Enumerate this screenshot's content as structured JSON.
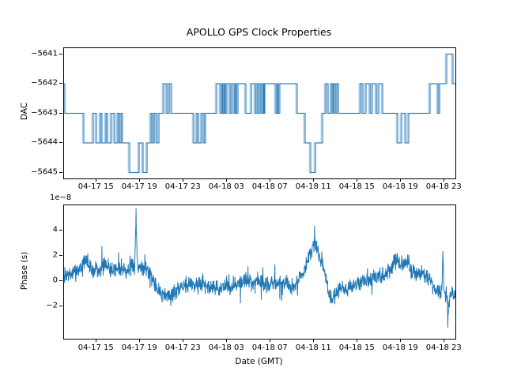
{
  "figure": {
    "title": "APOLLO GPS Clock Properties",
    "xlabel": "Date (GMT)",
    "background": "#ffffff",
    "accent_color": "#1f77b4"
  },
  "chart_data": [
    {
      "type": "step",
      "title": "APOLLO GPS Clock Properties",
      "ylabel": "DAC",
      "x_unit": "hours since 04-17 12:00 GMT",
      "xlim": [
        0,
        36
      ],
      "ylim": [
        -5645.2,
        -5640.8
      ],
      "yticks": [
        -5641,
        -5642,
        -5643,
        -5644,
        -5645
      ],
      "ytick_labels": [
        "−5641",
        "−5642",
        "−5643",
        "−5644",
        "−5645"
      ],
      "xtick_hours": [
        3,
        7,
        11,
        15,
        19,
        23,
        27,
        31,
        35
      ],
      "xtick_labels": [
        "04-17 15",
        "04-17 19",
        "04-17 23",
        "04-18 03",
        "04-18 07",
        "04-18 11",
        "04-18 15",
        "04-18 19",
        "04-18 23"
      ],
      "grid": false,
      "legend": "none",
      "line_color": "#2b7bba",
      "line_color_light": "#a8cbe4",
      "double_stroke_offset_hours": -0.12,
      "points": [
        [
          0,
          -5642
        ],
        [
          0.07,
          -5643
        ],
        [
          1.82,
          -5644
        ],
        [
          2.69,
          -5643
        ],
        [
          2.98,
          -5644
        ],
        [
          3.35,
          -5643
        ],
        [
          3.49,
          -5644
        ],
        [
          3.85,
          -5643
        ],
        [
          4.0,
          -5644
        ],
        [
          4.36,
          -5643
        ],
        [
          4.65,
          -5644
        ],
        [
          4.95,
          -5643
        ],
        [
          5.09,
          -5644
        ],
        [
          5.24,
          -5643
        ],
        [
          5.38,
          -5644
        ],
        [
          6.04,
          -5645
        ],
        [
          6.91,
          -5644
        ],
        [
          7.27,
          -5645
        ],
        [
          7.64,
          -5644
        ],
        [
          8.0,
          -5643
        ],
        [
          8.15,
          -5644
        ],
        [
          8.29,
          -5643
        ],
        [
          8.51,
          -5644
        ],
        [
          8.73,
          -5643
        ],
        [
          9.16,
          -5642
        ],
        [
          9.45,
          -5643
        ],
        [
          9.67,
          -5642
        ],
        [
          9.89,
          -5643
        ],
        [
          11.93,
          -5644
        ],
        [
          12.22,
          -5643
        ],
        [
          12.36,
          -5644
        ],
        [
          12.65,
          -5643
        ],
        [
          12.87,
          -5644
        ],
        [
          13.02,
          -5643
        ],
        [
          14.04,
          -5642
        ],
        [
          14.4,
          -5643
        ],
        [
          14.55,
          -5642
        ],
        [
          14.62,
          -5643
        ],
        [
          14.76,
          -5642
        ],
        [
          14.84,
          -5643
        ],
        [
          14.98,
          -5642
        ],
        [
          15.27,
          -5643
        ],
        [
          15.42,
          -5642
        ],
        [
          15.64,
          -5643
        ],
        [
          15.78,
          -5642
        ],
        [
          15.85,
          -5643
        ],
        [
          16.0,
          -5642
        ],
        [
          16.73,
          -5643
        ],
        [
          17.24,
          -5642
        ],
        [
          17.6,
          -5643
        ],
        [
          17.75,
          -5642
        ],
        [
          17.89,
          -5643
        ],
        [
          18.04,
          -5642
        ],
        [
          18.18,
          -5643
        ],
        [
          18.33,
          -5642
        ],
        [
          18.4,
          -5643
        ],
        [
          18.47,
          -5642
        ],
        [
          19.49,
          -5643
        ],
        [
          19.64,
          -5642
        ],
        [
          19.71,
          -5643
        ],
        [
          19.85,
          -5642
        ],
        [
          21.45,
          -5643
        ],
        [
          22.18,
          -5644
        ],
        [
          22.69,
          -5645
        ],
        [
          23.13,
          -5644
        ],
        [
          23.78,
          -5643
        ],
        [
          24.07,
          -5642
        ],
        [
          24.29,
          -5643
        ],
        [
          24.58,
          -5642
        ],
        [
          24.73,
          -5643
        ],
        [
          24.8,
          -5642
        ],
        [
          24.95,
          -5643
        ],
        [
          25.09,
          -5642
        ],
        [
          25.24,
          -5643
        ],
        [
          27.27,
          -5642
        ],
        [
          27.49,
          -5643
        ],
        [
          27.78,
          -5642
        ],
        [
          28.15,
          -5643
        ],
        [
          28.36,
          -5642
        ],
        [
          28.73,
          -5643
        ],
        [
          28.95,
          -5642
        ],
        [
          29.31,
          -5643
        ],
        [
          30.69,
          -5644
        ],
        [
          31.05,
          -5643
        ],
        [
          31.42,
          -5644
        ],
        [
          31.71,
          -5643
        ],
        [
          33.67,
          -5642
        ],
        [
          34.4,
          -5643
        ],
        [
          34.55,
          -5642
        ],
        [
          35.2,
          -5641
        ],
        [
          35.78,
          -5642
        ],
        [
          36,
          -5642
        ]
      ]
    },
    {
      "type": "line",
      "ylabel": "Phase (s)",
      "xlabel": "Date (GMT)",
      "offset_text": "1e−8",
      "value_scale": 1e-08,
      "x_unit": "hours since 04-17 12:00 GMT",
      "xlim": [
        0,
        36
      ],
      "ylim": [
        -4.6,
        6.0
      ],
      "yticks": [
        4,
        2,
        0,
        -2
      ],
      "ytick_labels": [
        "4",
        "2",
        "0",
        "−2"
      ],
      "xtick_hours": [
        3,
        7,
        11,
        15,
        19,
        23,
        27,
        31,
        35
      ],
      "xtick_labels": [
        "04-17 15",
        "04-17 19",
        "04-17 23",
        "04-18 03",
        "04-18 07",
        "04-18 11",
        "04-18 15",
        "04-18 19",
        "04-18 23"
      ],
      "grid": false,
      "legend": "none",
      "line_color": "#1f77b4",
      "noise_sd": 0.33,
      "seed": 7,
      "trend_keypoints": [
        [
          0,
          0.3
        ],
        [
          1.1,
          0.7
        ],
        [
          2.0,
          1.6
        ],
        [
          2.5,
          0.9
        ],
        [
          3.3,
          0.9
        ],
        [
          3.9,
          1.3
        ],
        [
          4.4,
          0.8
        ],
        [
          5.1,
          1.1
        ],
        [
          5.7,
          0.8
        ],
        [
          6.2,
          1.1
        ],
        [
          6.5,
          1.2
        ],
        [
          6.62,
          5.4
        ],
        [
          6.75,
          1.1
        ],
        [
          7.1,
          1.3
        ],
        [
          7.6,
          0.9
        ],
        [
          8.1,
          0.2
        ],
        [
          8.7,
          -0.8
        ],
        [
          9.3,
          -1.3
        ],
        [
          9.8,
          -1.1
        ],
        [
          10.3,
          -0.9
        ],
        [
          10.9,
          -0.4
        ],
        [
          11.6,
          -0.1
        ],
        [
          12.2,
          -0.4
        ],
        [
          12.7,
          -0.1
        ],
        [
          13.2,
          -0.5
        ],
        [
          13.8,
          -0.4
        ],
        [
          14.4,
          -0.7
        ],
        [
          14.9,
          -0.3
        ],
        [
          15.5,
          -0.6
        ],
        [
          16.0,
          -0.2
        ],
        [
          16.7,
          0.1
        ],
        [
          17.3,
          -0.3
        ],
        [
          17.8,
          0.2
        ],
        [
          18.4,
          -0.2
        ],
        [
          18.9,
          -0.4
        ],
        [
          19.5,
          -0.1
        ],
        [
          20.0,
          -0.4
        ],
        [
          20.5,
          -0.2
        ],
        [
          21.1,
          -0.5
        ],
        [
          21.7,
          0.2
        ],
        [
          22.2,
          1.0
        ],
        [
          22.6,
          2.2
        ],
        [
          23.0,
          2.9
        ],
        [
          23.3,
          2.4
        ],
        [
          23.7,
          1.4
        ],
        [
          24.1,
          0.2
        ],
        [
          24.4,
          -1.2
        ],
        [
          24.7,
          -1.5
        ],
        [
          25.2,
          -0.8
        ],
        [
          25.6,
          -0.5
        ],
        [
          26.0,
          -0.7
        ],
        [
          26.5,
          -0.4
        ],
        [
          27.1,
          -0.2
        ],
        [
          27.5,
          0.1
        ],
        [
          28.0,
          -0.1
        ],
        [
          28.5,
          0.2
        ],
        [
          29.1,
          0.4
        ],
        [
          29.7,
          0.6
        ],
        [
          30.2,
          1.1
        ],
        [
          30.7,
          1.9
        ],
        [
          31.1,
          1.2
        ],
        [
          31.6,
          1.4
        ],
        [
          32.0,
          0.7
        ],
        [
          32.5,
          0.4
        ],
        [
          32.9,
          0.7
        ],
        [
          33.5,
          0.1
        ],
        [
          33.9,
          -0.4
        ],
        [
          34.3,
          -0.7
        ],
        [
          34.75,
          -0.8
        ],
        [
          34.85,
          2.7
        ],
        [
          34.95,
          -0.9
        ],
        [
          35.25,
          -1.2
        ],
        [
          35.3,
          -3.6
        ],
        [
          35.4,
          -1.7
        ],
        [
          35.6,
          -1.0
        ],
        [
          35.9,
          -1.3
        ],
        [
          36,
          -1.0
        ]
      ]
    }
  ]
}
